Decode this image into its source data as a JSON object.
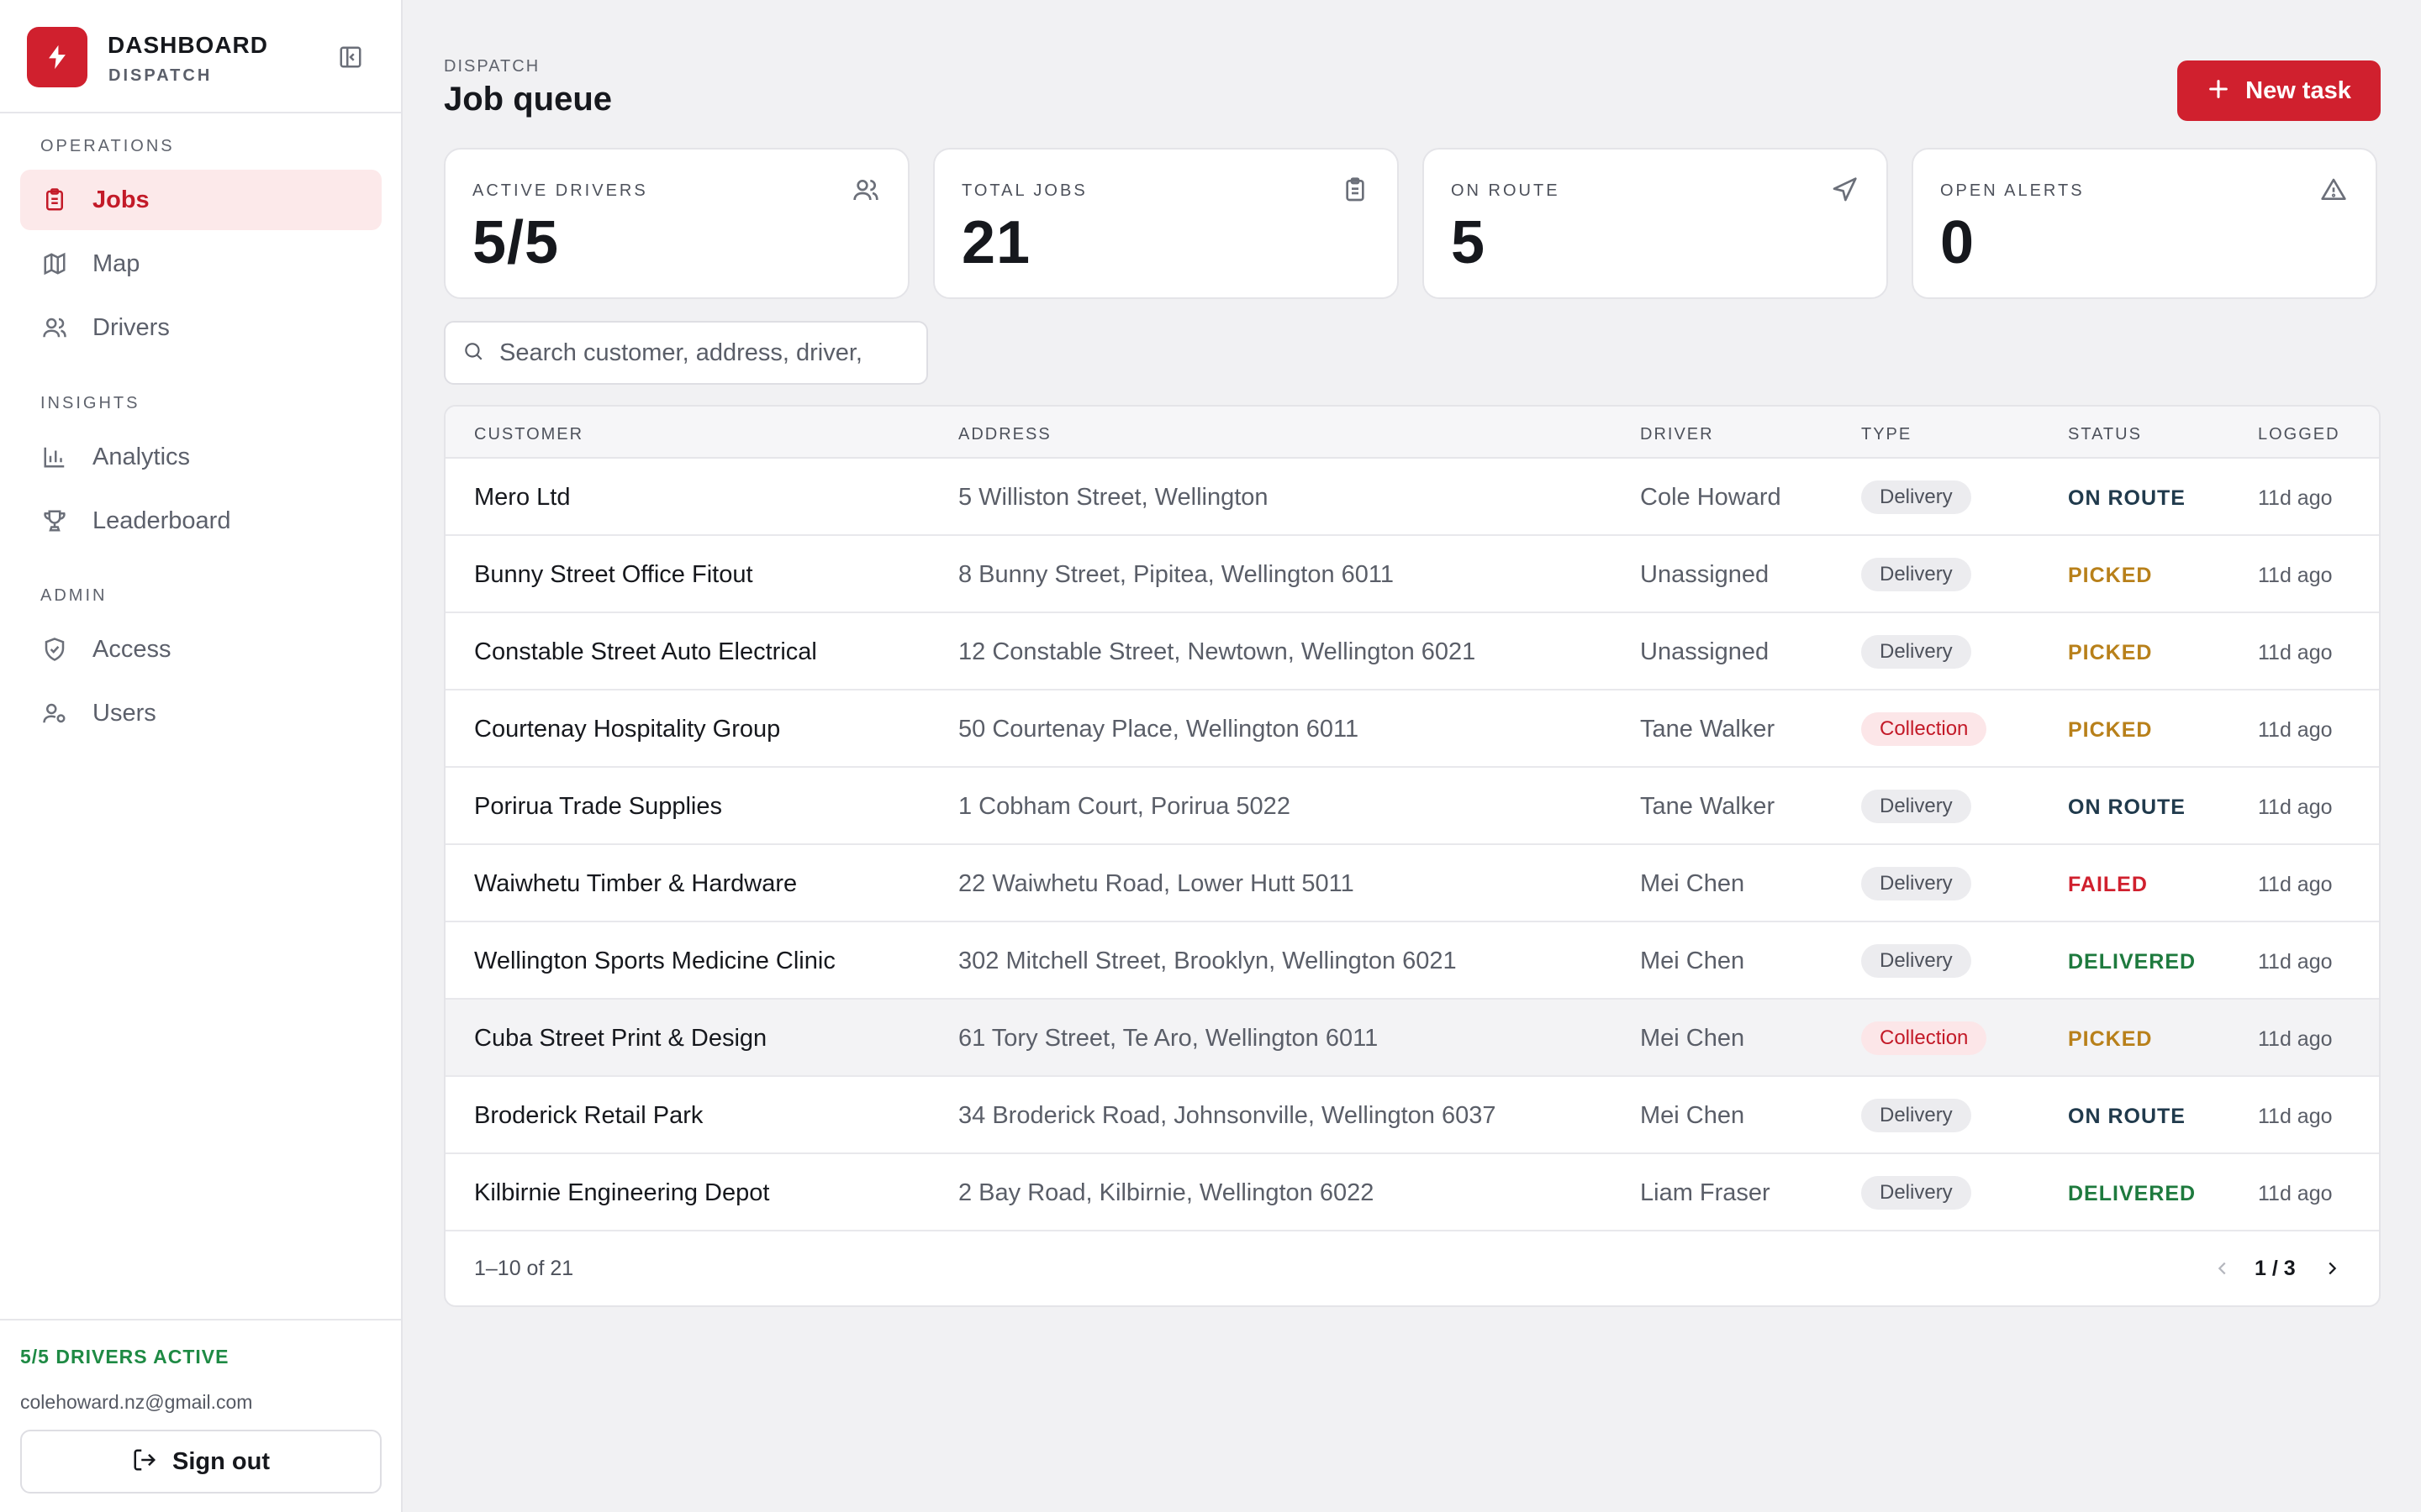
{
  "brand": {
    "title": "DASHBOARD",
    "subtitle": "DISPATCH",
    "logo_icon": "lightning-bolt-icon",
    "accent": "#d0202e"
  },
  "sidebar": {
    "sections": [
      {
        "label": "OPERATIONS",
        "items": [
          {
            "label": "Jobs",
            "icon": "clipboard-icon",
            "active": true
          },
          {
            "label": "Map",
            "icon": "map-icon",
            "active": false
          },
          {
            "label": "Drivers",
            "icon": "users-icon",
            "active": false
          }
        ]
      },
      {
        "label": "INSIGHTS",
        "items": [
          {
            "label": "Analytics",
            "icon": "bar-chart-icon",
            "active": false
          },
          {
            "label": "Leaderboard",
            "icon": "trophy-icon",
            "active": false
          }
        ]
      },
      {
        "label": "ADMIN",
        "items": [
          {
            "label": "Access",
            "icon": "shield-check-icon",
            "active": false
          },
          {
            "label": "Users",
            "icon": "user-cog-icon",
            "active": false
          }
        ]
      }
    ],
    "footer": {
      "drivers_active": "5/5 DRIVERS ACTIVE",
      "email": "colehoward.nz@gmail.com",
      "signout_label": "Sign out"
    }
  },
  "header": {
    "breadcrumb": "DISPATCH",
    "title": "Job queue",
    "new_task_label": "New task"
  },
  "stats": [
    {
      "label": "ACTIVE DRIVERS",
      "value": "5/5",
      "icon": "users-icon"
    },
    {
      "label": "TOTAL JOBS",
      "value": "21",
      "icon": "clipboard-icon"
    },
    {
      "label": "ON ROUTE",
      "value": "5",
      "icon": "navigation-arrow-icon"
    },
    {
      "label": "OPEN ALERTS",
      "value": "0",
      "icon": "alert-triangle-icon"
    }
  ],
  "search": {
    "placeholder": "Search customer, address, driver,",
    "value": ""
  },
  "table": {
    "columns": [
      "CUSTOMER",
      "ADDRESS",
      "DRIVER",
      "TYPE",
      "STATUS",
      "LOGGED"
    ],
    "rows": [
      {
        "customer": "Mero Ltd",
        "address": "5 Williston Street, Wellington",
        "driver": "Cole Howard",
        "type": "Delivery",
        "status": "ON ROUTE",
        "logged": "11d ago"
      },
      {
        "customer": "Bunny Street Office Fitout",
        "address": "8 Bunny Street, Pipitea, Wellington 6011",
        "driver": "Unassigned",
        "type": "Delivery",
        "status": "PICKED",
        "logged": "11d ago"
      },
      {
        "customer": "Constable Street Auto Electrical",
        "address": "12 Constable Street, Newtown, Wellington 6021",
        "driver": "Unassigned",
        "type": "Delivery",
        "status": "PICKED",
        "logged": "11d ago"
      },
      {
        "customer": "Courtenay Hospitality Group",
        "address": "50 Courtenay Place, Wellington 6011",
        "driver": "Tane Walker",
        "type": "Collection",
        "status": "PICKED",
        "logged": "11d ago"
      },
      {
        "customer": "Porirua Trade Supplies",
        "address": "1 Cobham Court, Porirua 5022",
        "driver": "Tane Walker",
        "type": "Delivery",
        "status": "ON ROUTE",
        "logged": "11d ago"
      },
      {
        "customer": "Waiwhetu Timber & Hardware",
        "address": "22 Waiwhetu Road, Lower Hutt 5011",
        "driver": "Mei Chen",
        "type": "Delivery",
        "status": "FAILED",
        "logged": "11d ago"
      },
      {
        "customer": "Wellington Sports Medicine Clinic",
        "address": "302 Mitchell Street, Brooklyn, Wellington 6021",
        "driver": "Mei Chen",
        "type": "Delivery",
        "status": "DELIVERED",
        "logged": "11d ago"
      },
      {
        "customer": "Cuba Street Print & Design",
        "address": "61 Tory Street, Te Aro, Wellington 6011",
        "driver": "Mei Chen",
        "type": "Collection",
        "status": "PICKED",
        "logged": "11d ago"
      },
      {
        "customer": "Broderick Retail Park",
        "address": "34 Broderick Road, Johnsonville, Wellington 6037",
        "driver": "Mei Chen",
        "type": "Delivery",
        "status": "ON ROUTE",
        "logged": "11d ago"
      },
      {
        "customer": "Kilbirnie Engineering Depot",
        "address": "2 Bay Road, Kilbirnie, Wellington 6022",
        "driver": "Liam Fraser",
        "type": "Delivery",
        "status": "DELIVERED",
        "logged": "11d ago"
      }
    ],
    "range": "1–10 of 21",
    "page": "1 / 3"
  },
  "colors": {
    "accent": "#d0202e",
    "on_route": "#203a4c",
    "picked": "#b8801a",
    "failed": "#d0202e",
    "delivered": "#1e7a3e",
    "drivers_active": "#1e8a44"
  }
}
